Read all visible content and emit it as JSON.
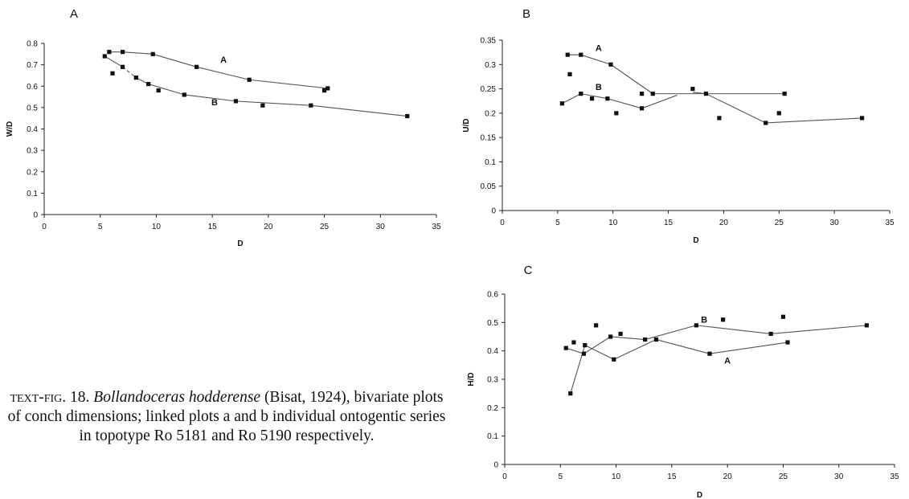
{
  "caption": {
    "prefix": "text-fig. 18. ",
    "species": "Bollandoceras hodderense",
    "rest": " (Bisat, 1924), bivariate plots of conch dimensions; linked plots a and b individual ontogentic series in topotype Ro 5181 and Ro 5190 respectively."
  },
  "chart_data": [
    {
      "type": "scatter",
      "panel_label": "A",
      "xlabel": "D",
      "ylabel": "W/D",
      "xlim": [
        0,
        35
      ],
      "ylim": [
        0,
        0.8
      ],
      "xticks": [
        0,
        5,
        10,
        15,
        20,
        25,
        30,
        35
      ],
      "yticks": [
        0,
        0.1,
        0.2,
        0.3,
        0.4,
        0.5,
        0.6,
        0.7,
        0.8
      ],
      "ytick_labels": [
        "0",
        "0.1",
        "0.2",
        "0.3",
        "0.4",
        "0.5",
        "0.6",
        "0.7",
        "0.8"
      ],
      "grid": false,
      "points": [
        {
          "x": 5.4,
          "y": 0.74
        },
        {
          "x": 5.8,
          "y": 0.76
        },
        {
          "x": 6.1,
          "y": 0.66
        },
        {
          "x": 7.0,
          "y": 0.76
        },
        {
          "x": 7.0,
          "y": 0.69
        },
        {
          "x": 8.2,
          "y": 0.64
        },
        {
          "x": 9.3,
          "y": 0.61
        },
        {
          "x": 9.7,
          "y": 0.75
        },
        {
          "x": 10.2,
          "y": 0.58
        },
        {
          "x": 12.5,
          "y": 0.56
        },
        {
          "x": 13.6,
          "y": 0.69
        },
        {
          "x": 17.1,
          "y": 0.53
        },
        {
          "x": 18.3,
          "y": 0.63
        },
        {
          "x": 19.5,
          "y": 0.51
        },
        {
          "x": 23.8,
          "y": 0.51
        },
        {
          "x": 25.0,
          "y": 0.58
        },
        {
          "x": 25.3,
          "y": 0.59
        },
        {
          "x": 32.4,
          "y": 0.46
        }
      ],
      "series": [
        {
          "name": "A",
          "x": [
            5.8,
            7.0,
            9.7,
            13.6,
            18.3,
            25.3
          ],
          "y": [
            0.76,
            0.76,
            0.75,
            0.69,
            0.63,
            0.59
          ],
          "label_at": [
            16.0,
            0.71
          ],
          "dashed_segments": []
        },
        {
          "name": "B",
          "x": [
            5.4,
            7.0,
            8.2,
            9.3,
            12.5,
            17.1,
            23.8,
            32.4
          ],
          "y": [
            0.74,
            0.69,
            0.64,
            0.61,
            0.56,
            0.53,
            0.51,
            0.46
          ],
          "label_at": [
            15.2,
            0.51
          ],
          "dashed_segments": [
            1
          ]
        }
      ]
    },
    {
      "type": "scatter",
      "panel_label": "B",
      "xlabel": "D",
      "ylabel": "U/D",
      "xlim": [
        0,
        35
      ],
      "ylim": [
        0,
        0.35
      ],
      "xticks": [
        0,
        5,
        10,
        15,
        20,
        25,
        30,
        35
      ],
      "yticks": [
        0,
        0.05,
        0.1,
        0.15,
        0.2,
        0.25,
        0.3,
        0.35
      ],
      "ytick_labels": [
        "0",
        "0.05",
        "0.1",
        "0.15",
        "0.2",
        "0.25",
        "0.3",
        "0.35"
      ],
      "grid": false,
      "points": [
        {
          "x": 5.4,
          "y": 0.22
        },
        {
          "x": 5.9,
          "y": 0.32
        },
        {
          "x": 6.1,
          "y": 0.28
        },
        {
          "x": 7.1,
          "y": 0.32
        },
        {
          "x": 7.1,
          "y": 0.24
        },
        {
          "x": 8.1,
          "y": 0.23
        },
        {
          "x": 9.5,
          "y": 0.23
        },
        {
          "x": 9.8,
          "y": 0.3
        },
        {
          "x": 10.3,
          "y": 0.2
        },
        {
          "x": 12.6,
          "y": 0.24
        },
        {
          "x": 12.6,
          "y": 0.21
        },
        {
          "x": 13.6,
          "y": 0.24
        },
        {
          "x": 17.2,
          "y": 0.25
        },
        {
          "x": 18.4,
          "y": 0.24
        },
        {
          "x": 19.6,
          "y": 0.19
        },
        {
          "x": 23.8,
          "y": 0.18
        },
        {
          "x": 25.0,
          "y": 0.2
        },
        {
          "x": 25.5,
          "y": 0.24
        },
        {
          "x": 32.5,
          "y": 0.19
        }
      ],
      "series": [
        {
          "name": "A",
          "x": [
            5.9,
            7.1,
            9.8,
            13.6,
            25.5
          ],
          "y": [
            0.32,
            0.32,
            0.3,
            0.24,
            0.24
          ],
          "label_at": [
            8.7,
            0.328
          ],
          "dashed_segments": []
        },
        {
          "name": "B",
          "x": [
            5.4,
            7.1,
            9.5,
            12.6,
            15.8
          ],
          "y": [
            0.22,
            0.24,
            0.23,
            0.21,
            0.237
          ],
          "label_at": [
            8.7,
            0.248
          ],
          "dashed_segments": []
        },
        {
          "name": "",
          "x": [
            17.2,
            18.4,
            23.8,
            32.5
          ],
          "y": [
            0.243,
            0.24,
            0.18,
            0.19
          ],
          "label_at": null,
          "dashed_segments": []
        }
      ]
    },
    {
      "type": "scatter",
      "panel_label": "C",
      "xlabel": "D",
      "ylabel": "H/D",
      "xlim": [
        0,
        35
      ],
      "ylim": [
        0,
        0.6
      ],
      "xticks": [
        0,
        5,
        10,
        15,
        20,
        25,
        30,
        35
      ],
      "yticks": [
        0,
        0.1,
        0.2,
        0.3,
        0.4,
        0.5,
        0.6
      ],
      "ytick_labels": [
        "0",
        "0.1",
        "0.2",
        "0.3",
        "0.4",
        "0.5",
        "0.6"
      ],
      "grid": false,
      "points": [
        {
          "x": 5.5,
          "y": 0.41
        },
        {
          "x": 5.9,
          "y": 0.25
        },
        {
          "x": 6.2,
          "y": 0.43
        },
        {
          "x": 7.1,
          "y": 0.39
        },
        {
          "x": 7.2,
          "y": 0.42
        },
        {
          "x": 8.2,
          "y": 0.49
        },
        {
          "x": 9.5,
          "y": 0.45
        },
        {
          "x": 9.8,
          "y": 0.37
        },
        {
          "x": 10.4,
          "y": 0.46
        },
        {
          "x": 12.6,
          "y": 0.44
        },
        {
          "x": 13.6,
          "y": 0.44
        },
        {
          "x": 17.2,
          "y": 0.49
        },
        {
          "x": 18.4,
          "y": 0.39
        },
        {
          "x": 19.6,
          "y": 0.51
        },
        {
          "x": 23.9,
          "y": 0.46
        },
        {
          "x": 25.0,
          "y": 0.52
        },
        {
          "x": 25.4,
          "y": 0.43
        },
        {
          "x": 32.5,
          "y": 0.49
        }
      ],
      "series": [
        {
          "name": "A",
          "x": [
            5.9,
            7.2,
            9.8,
            13.6,
            18.4,
            25.4
          ],
          "y": [
            0.25,
            0.42,
            0.37,
            0.44,
            0.39,
            0.43
          ],
          "label_at": [
            20.0,
            0.355
          ],
          "dashed_segments": []
        },
        {
          "name": "B",
          "x": [
            5.5,
            7.1,
            9.5,
            12.6,
            17.2,
            23.9,
            32.5
          ],
          "y": [
            0.41,
            0.39,
            0.45,
            0.44,
            0.49,
            0.46,
            0.49
          ],
          "label_at": [
            17.9,
            0.5
          ],
          "dashed_segments": []
        }
      ]
    }
  ]
}
